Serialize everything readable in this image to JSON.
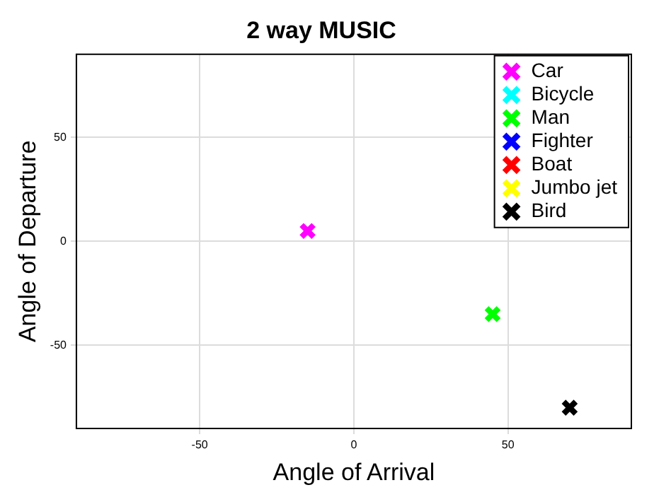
{
  "chart_data": {
    "type": "scatter",
    "title": "2 way MUSIC",
    "xlabel": "Angle of Arrival",
    "ylabel": "Angle of Departure",
    "series": [
      {
        "name": "Car",
        "color": "#ff00ff",
        "x": [
          -15
        ],
        "values": [
          5
        ]
      },
      {
        "name": "Bicycle",
        "color": "#00ffff"
      },
      {
        "name": "Man",
        "color": "#00ff00",
        "x": [
          45
        ],
        "values": [
          -35
        ]
      },
      {
        "name": "Fighter",
        "color": "#0000ff"
      },
      {
        "name": "Boat",
        "color": "#ff0000"
      },
      {
        "name": "Jumbo jet",
        "color": "#ffff00"
      },
      {
        "name": "Bird",
        "color": "#000000",
        "x": [
          70
        ],
        "values": [
          -80
        ]
      }
    ],
    "xlim": [
      -90,
      90
    ],
    "ylim": [
      -90,
      90
    ],
    "xticks": [
      -50,
      0,
      50
    ],
    "yticks": [
      -50,
      0,
      50
    ],
    "grid": true,
    "legend": "top right",
    "marker": "cross"
  }
}
